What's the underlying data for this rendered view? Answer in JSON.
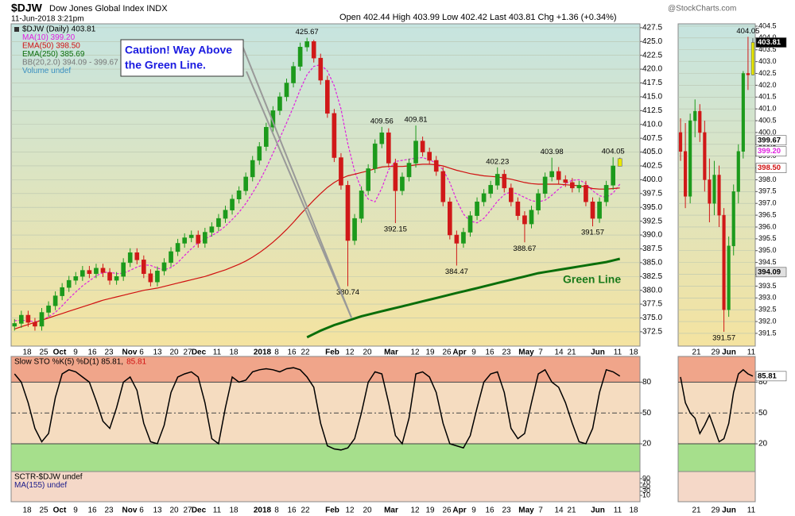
{
  "header": {
    "symbol": "$DJW",
    "name": "Dow Jones Global Index INDX",
    "date": "11-Jun-2018 3:21pm",
    "quote": "Open 402.44 High 403.99 Low 402.42 Last 403.81 Chg +1.36 (+0.34%)",
    "credit": "@StockCharts.com"
  },
  "chart_data": [
    {
      "type": "candlestick",
      "legend_title": "$DJW (Daily) 403.81",
      "legend": [
        {
          "name": "BB(20,2.0) 394.09 - 399.67",
          "color": "#777777"
        },
        {
          "name": "Volume undef",
          "color": "#3a8fc0"
        }
      ],
      "callout": [
        "Caution! Way Above",
        "the Green Line."
      ],
      "line_label": "Green Line",
      "up_color": "#1c9a1c",
      "down_color": "#d01818",
      "last_color": "#e8e800",
      "open": [
        373.5,
        374.0,
        375.5,
        374.2,
        373.5,
        376.0,
        377.2,
        379.0,
        380.5,
        381.8,
        382.5,
        383.6,
        383.0,
        384.0,
        383.2,
        381.8,
        382.5,
        385.0,
        386.8,
        385.5,
        383.0,
        381.5,
        383.5,
        385.0,
        387.0,
        388.5,
        389.5,
        390.0,
        388.5,
        390.5,
        391.5,
        393.0,
        394.5,
        396.5,
        398.0,
        400.5,
        403.5,
        406.0,
        409.5,
        412.5,
        415.0,
        417.5,
        420.5,
        424.0,
        425.0,
        422.0,
        418.0,
        412.0,
        404.0,
        399.0,
        389.0,
        393.0,
        398.0,
        402.0,
        406.5,
        408.5,
        403.0,
        398.0,
        400.5,
        403.0,
        407.0,
        405.0,
        403.5,
        401.5,
        396.0,
        390.0,
        388.5,
        390.5,
        393.5,
        396.0,
        397.5,
        399.0,
        401.0,
        398.5,
        396.0,
        393.5,
        392.0,
        394.5,
        397.5,
        400.5,
        401.5,
        400.0,
        399.5,
        398.5,
        399.0,
        396.0,
        393.0,
        396.0,
        399.0,
        402.44
      ],
      "high": [
        374.8,
        376.3,
        376.3,
        375.0,
        376.8,
        378.0,
        379.8,
        381.3,
        382.6,
        383.3,
        384.4,
        384.4,
        384.8,
        384.8,
        384.0,
        383.3,
        385.8,
        387.6,
        387.6,
        386.3,
        383.8,
        384.3,
        385.8,
        387.8,
        389.3,
        390.3,
        390.8,
        390.8,
        391.3,
        392.3,
        393.8,
        395.3,
        397.3,
        398.8,
        401.3,
        404.3,
        406.8,
        410.3,
        413.3,
        415.8,
        418.3,
        421.3,
        424.8,
        425.67,
        425.3,
        422.8,
        418.8,
        412.8,
        404.8,
        399.8,
        393.8,
        398.8,
        402.8,
        407.3,
        409.56,
        409.3,
        403.8,
        401.3,
        403.8,
        409.81,
        407.8,
        405.8,
        404.3,
        402.3,
        396.8,
        390.8,
        391.3,
        394.3,
        396.8,
        398.3,
        399.8,
        402.23,
        401.8,
        399.3,
        396.8,
        394.3,
        395.3,
        398.3,
        401.3,
        403.98,
        402.3,
        400.8,
        400.3,
        399.8,
        399.8,
        396.8,
        396.8,
        399.8,
        404.05,
        403.99
      ],
      "low": [
        372.7,
        373.2,
        373.4,
        372.7,
        372.7,
        375.2,
        376.4,
        378.2,
        379.7,
        381.0,
        381.7,
        382.2,
        382.2,
        382.4,
        381.0,
        381.0,
        381.7,
        384.2,
        384.7,
        382.2,
        380.7,
        380.7,
        382.7,
        384.2,
        386.2,
        387.7,
        388.7,
        387.7,
        387.7,
        389.7,
        390.7,
        392.2,
        393.7,
        395.7,
        397.2,
        399.7,
        402.7,
        405.2,
        408.7,
        411.7,
        414.2,
        416.7,
        419.7,
        423.2,
        421.2,
        417.2,
        411.2,
        403.2,
        398.2,
        380.74,
        388.2,
        392.2,
        397.2,
        401.2,
        405.7,
        402.2,
        392.15,
        397.2,
        399.7,
        402.2,
        404.2,
        402.7,
        400.7,
        395.2,
        389.2,
        384.47,
        387.7,
        389.7,
        392.7,
        395.2,
        396.7,
        398.2,
        397.7,
        395.2,
        392.7,
        388.67,
        391.2,
        393.7,
        396.7,
        399.7,
        399.2,
        398.7,
        397.7,
        397.7,
        395.2,
        391.57,
        392.2,
        395.2,
        398.2,
        402.42
      ],
      "close": [
        374.0,
        375.5,
        374.2,
        373.5,
        376.0,
        377.2,
        379.0,
        380.5,
        381.8,
        382.5,
        383.6,
        383.0,
        384.0,
        383.2,
        381.8,
        382.5,
        385.0,
        386.8,
        385.5,
        383.0,
        381.5,
        383.5,
        385.0,
        387.0,
        388.5,
        389.5,
        390.0,
        388.5,
        390.5,
        391.5,
        393.0,
        394.5,
        396.5,
        398.0,
        400.5,
        403.5,
        406.0,
        409.5,
        412.5,
        415.0,
        417.5,
        420.5,
        424.0,
        425.0,
        422.0,
        418.0,
        412.0,
        404.0,
        399.0,
        389.0,
        393.0,
        398.0,
        402.0,
        406.5,
        408.5,
        403.0,
        398.0,
        400.5,
        403.0,
        407.0,
        405.0,
        403.5,
        401.5,
        396.0,
        390.0,
        388.5,
        390.5,
        393.5,
        396.0,
        397.5,
        399.0,
        401.0,
        398.5,
        396.0,
        393.5,
        392.0,
        394.5,
        397.5,
        400.5,
        401.5,
        400.0,
        399.5,
        398.5,
        399.0,
        396.0,
        393.0,
        396.0,
        399.0,
        402.5,
        403.81
      ],
      "series": [
        {
          "name": "MA(10) 399.20",
          "color": "#e020e0",
          "dash": true,
          "values": [
            374.5,
            374.6,
            374.5,
            374.3,
            374.6,
            375.2,
            376.0,
            377.2,
            378.5,
            379.7,
            380.8,
            381.7,
            382.6,
            383.2,
            383.3,
            383.0,
            383.1,
            383.6,
            384.2,
            384.6,
            384.5,
            384.0,
            383.7,
            384.1,
            385.0,
            386.3,
            387.5,
            388.6,
            389.3,
            389.9,
            390.6,
            391.6,
            392.8,
            394.1,
            395.7,
            397.6,
            399.7,
            402.1,
            404.8,
            407.5,
            410.3,
            413.2,
            416.3,
            419.0,
            420.5,
            420.8,
            419.7,
            417.0,
            412.8,
            406.5,
            401.5,
            398.3,
            396.5,
            396.0,
            398.5,
            401.8,
            403.3,
            403.5,
            403.7,
            403.9,
            404.0,
            403.6,
            403.0,
            401.8,
            399.5,
            396.3,
            393.8,
            392.5,
            392.2,
            393.0,
            394.5,
            396.1,
            397.3,
            397.8,
            397.4,
            396.8,
            396.2,
            396.0,
            396.3,
            397.2,
            398.3,
            399.3,
            399.9,
            400.0,
            399.3,
            398.0,
            397.1,
            396.8,
            397.6,
            399.2
          ]
        },
        {
          "name": "EMA(50) 398.50",
          "color": "#d01010",
          "values": [
            373.0,
            373.4,
            373.8,
            374.2,
            374.6,
            375.0,
            375.4,
            375.8,
            376.2,
            376.6,
            377.0,
            377.4,
            377.8,
            378.2,
            378.5,
            378.8,
            379.1,
            379.4,
            379.7,
            380.0,
            380.2,
            380.4,
            380.7,
            381.0,
            381.3,
            381.6,
            381.9,
            382.2,
            382.5,
            382.9,
            383.3,
            383.7,
            384.2,
            384.7,
            385.3,
            386.0,
            386.8,
            387.7,
            388.7,
            389.8,
            391.0,
            392.3,
            393.7,
            395.0,
            396.3,
            397.5,
            398.6,
            399.5,
            400.2,
            400.7,
            401.0,
            401.3,
            401.6,
            402.0,
            402.3,
            402.4,
            402.4,
            402.4,
            402.5,
            402.7,
            402.8,
            402.8,
            402.7,
            402.5,
            402.1,
            401.7,
            401.4,
            401.1,
            400.9,
            400.7,
            400.6,
            400.5,
            400.3,
            400.1,
            399.8,
            399.5,
            399.3,
            399.2,
            399.2,
            399.2,
            399.2,
            399.1,
            399.0,
            398.9,
            398.7,
            398.4,
            398.3,
            398.3,
            398.4,
            398.5
          ]
        },
        {
          "name": "EMA(250) 385.69",
          "color": "#0a6e0a",
          "width": 3,
          "values": [
            null,
            null,
            null,
            null,
            null,
            null,
            null,
            null,
            null,
            null,
            null,
            null,
            null,
            null,
            null,
            null,
            null,
            null,
            null,
            null,
            null,
            null,
            null,
            null,
            null,
            null,
            null,
            null,
            null,
            null,
            null,
            null,
            null,
            null,
            null,
            null,
            null,
            null,
            null,
            null,
            null,
            null,
            null,
            371.5,
            372.1,
            372.7,
            373.2,
            373.7,
            374.1,
            374.5,
            374.9,
            375.3,
            375.6,
            375.9,
            376.2,
            376.5,
            376.8,
            377.1,
            377.4,
            377.7,
            378.0,
            378.3,
            378.6,
            378.9,
            379.2,
            379.5,
            379.8,
            380.1,
            380.4,
            380.7,
            381.0,
            381.3,
            381.6,
            381.9,
            382.2,
            382.5,
            382.8,
            383.1,
            383.3,
            383.5,
            383.7,
            383.9,
            384.1,
            384.3,
            384.5,
            384.7,
            384.9,
            385.1,
            385.4,
            385.69
          ]
        }
      ],
      "high_labels": [
        425.67,
        409.56,
        409.81,
        402.23,
        403.98,
        404.05
      ],
      "low_labels": [
        380.74,
        392.15,
        384.47,
        388.67,
        391.57
      ],
      "ylim": [
        369.9,
        428.2
      ],
      "yticks": [
        372.5,
        {
          "value": 375,
          "label": "375.0"
        },
        377.5,
        {
          "value": 380,
          "label": "380.0"
        },
        382.5,
        {
          "value": 385,
          "label": "385.0"
        },
        387.5,
        {
          "value": 390,
          "label": "390.0"
        },
        392.5,
        {
          "value": 395,
          "label": "395.0"
        },
        397.5,
        {
          "value": 400,
          "label": "400.0"
        },
        402.5,
        {
          "value": 405,
          "label": "405.0"
        },
        407.5,
        {
          "value": 410,
          "label": "410.0"
        },
        412.5,
        {
          "value": 415,
          "label": "415.0"
        },
        417.5,
        {
          "value": 420,
          "label": "420.0"
        },
        422.5,
        {
          "value": 425,
          "label": "425.0"
        },
        427.5
      ],
      "grid": true,
      "grid_color": "#b9c4b0",
      "xtick_labels": [
        "18",
        "25",
        "Oct",
        "9",
        "16",
        "23",
        "Nov",
        "6",
        "13",
        "20",
        "27",
        "Dec",
        "11",
        "18",
        "2018",
        "8",
        "16",
        "22",
        "Feb",
        "12",
        "20",
        "Mar",
        "12",
        "19",
        "26",
        "Apr",
        "9",
        "16",
        "23",
        "May",
        "7",
        "14",
        "21",
        "Jun",
        "11",
        "18"
      ]
    },
    {
      "type": "line",
      "legend_inline": true,
      "legend": [
        {
          "name": "Slow STO %K(5) %D(1) 85.81,",
          "color": "#000000"
        },
        {
          "name": "85.81",
          "color": "#d01010"
        }
      ],
      "color": "#000000",
      "zones": true,
      "zone_colors": [
        "#f0a58a",
        "#f5dcc0",
        "#a6df8c"
      ],
      "values": [
        88,
        80,
        60,
        35,
        22,
        30,
        65,
        88,
        92,
        90,
        85,
        80,
        62,
        42,
        35,
        55,
        80,
        85,
        72,
        40,
        22,
        20,
        38,
        70,
        85,
        88,
        90,
        85,
        60,
        25,
        20,
        55,
        85,
        80,
        82,
        90,
        92,
        93,
        92,
        90,
        93,
        94,
        92,
        85,
        75,
        40,
        18,
        15,
        14,
        16,
        25,
        50,
        80,
        90,
        88,
        60,
        28,
        20,
        45,
        88,
        90,
        85,
        70,
        40,
        20,
        18,
        16,
        28,
        55,
        80,
        88,
        90,
        70,
        35,
        25,
        30,
        60,
        88,
        92,
        80,
        75,
        60,
        40,
        22,
        20,
        35,
        70,
        92,
        90,
        85.81
      ],
      "ylim": [
        -7,
        105
      ],
      "yticks": [
        20,
        50,
        80
      ],
      "grid": true,
      "grid_color": "#444444"
    },
    {
      "type": "line",
      "legend": [
        {
          "name": "SCTR-$DJW undef",
          "color": "#000000"
        },
        {
          "name": "MA(155) undef",
          "color": "#1a1a8a"
        }
      ],
      "ylim": [
        -20,
        124
      ],
      "yticks": [
        10,
        30,
        50,
        70,
        90
      ],
      "grid": false
    },
    {
      "type": "candlestick",
      "up_color": "#1c9a1c",
      "down_color": "#d01818",
      "last_color": "#e8e800",
      "open": [
        400.0,
        399.2,
        397.3,
        400.5,
        400.9,
        400.0,
        398.0,
        397.0,
        398.2,
        396.5,
        392.5,
        395.2,
        397.5,
        399.2,
        402.5,
        402.44
      ],
      "high": [
        400.6,
        400.4,
        400.8,
        401.4,
        401.2,
        400.5,
        398.9,
        398.8,
        398.6,
        396.8,
        395.6,
        397.8,
        399.5,
        402.6,
        404.05,
        403.99
      ],
      "low": [
        398.8,
        396.8,
        397.0,
        399.8,
        399.6,
        397.5,
        396.2,
        396.5,
        396.0,
        391.57,
        392.2,
        394.8,
        397.0,
        398.9,
        401.8,
        402.42
      ],
      "close": [
        399.2,
        397.3,
        400.5,
        400.9,
        400.0,
        398.0,
        397.0,
        398.2,
        396.5,
        392.5,
        395.2,
        397.5,
        399.2,
        402.5,
        402.44,
        403.81
      ],
      "high_labels": [
        404.05
      ],
      "low_labels": [
        391.57
      ],
      "ylim": [
        390.96,
        404.6
      ],
      "yticks": [
        391.5,
        {
          "value": 392,
          "label": "392.0"
        },
        392.5,
        {
          "value": 393,
          "label": "393.0"
        },
        393.5,
        {
          "value": 394,
          "label": "394.0"
        },
        394.5,
        {
          "value": 395,
          "label": "395.0"
        },
        395.5,
        {
          "value": 396,
          "label": "396.0"
        },
        396.5,
        {
          "value": 397,
          "label": "397.0"
        },
        397.5,
        {
          "value": 398,
          "label": "398.0"
        },
        398.5,
        {
          "value": 399,
          "label": "399.0"
        },
        399.5,
        {
          "value": 400,
          "label": "400.0"
        },
        400.5,
        {
          "value": 401,
          "label": "401.0"
        },
        401.5,
        {
          "value": 402,
          "label": "402.0"
        },
        402.5,
        {
          "value": 403,
          "label": "403.0"
        },
        403.5,
        {
          "value": 404,
          "label": "404.0"
        },
        404.5
      ],
      "grid": true,
      "grid_color": "#b9c4b0",
      "tags": [
        {
          "value": 403.81,
          "color": "#000000",
          "text_color": "#ffffff"
        },
        {
          "value": 399.67,
          "color": "#ffffff",
          "text_color": "#000000"
        },
        {
          "value": 399.2,
          "label": "399.20",
          "color": "#ffffff",
          "text_color": "#e020e0"
        },
        {
          "value": 398.5,
          "label": "398.50",
          "color": "#ffffff",
          "text_color": "#d01010"
        },
        {
          "value": 394.09,
          "color": "#e0e0e0",
          "text_color": "#000000"
        }
      ],
      "xtick_labels": [
        "21",
        "29",
        "Jun",
        "11"
      ]
    },
    {
      "type": "line",
      "color": "#000000",
      "zones": true,
      "zone_colors": [
        "#f0a58a",
        "#f5dcc0",
        "#a6df8c"
      ],
      "values": [
        85,
        60,
        50,
        45,
        30,
        38,
        48,
        35,
        22,
        25,
        40,
        70,
        88,
        92,
        88,
        85.81
      ],
      "ylim": [
        -7,
        105
      ],
      "yticks": [
        20,
        50,
        80
      ],
      "grid": true,
      "grid_color": "#444444",
      "tags": [
        {
          "value": 85.81,
          "color": "#ffffff",
          "text_color": "#000000"
        }
      ]
    }
  ]
}
